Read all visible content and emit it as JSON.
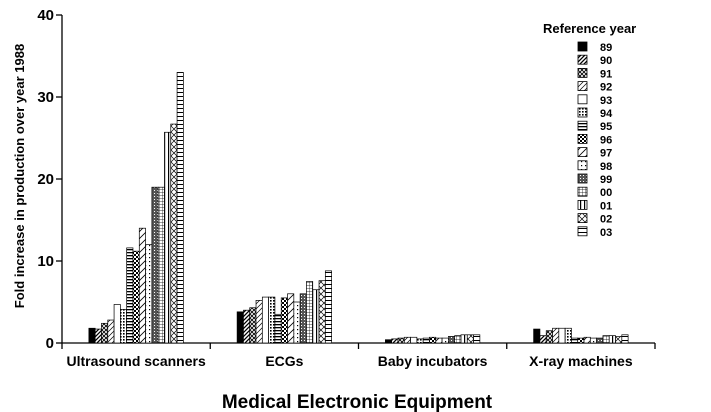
{
  "chart_data": {
    "type": "bar",
    "xlabel": "Medical Electronic Equipment",
    "ylabel": "Fold increase in production over year 1988",
    "ylim": [
      0,
      40
    ],
    "yticks": [
      0,
      10,
      20,
      30,
      40
    ],
    "grid": false,
    "legend": {
      "title": "Reference year",
      "placement": "top-right"
    },
    "categories": [
      "Ultrasound scanners",
      "ECGs",
      "Baby incubators",
      "X-ray machines"
    ],
    "series": [
      {
        "name": "89",
        "values": [
          1.8,
          3.8,
          0.4,
          1.7
        ]
      },
      {
        "name": "90",
        "values": [
          1.7,
          4.0,
          0.5,
          0.9
        ]
      },
      {
        "name": "91",
        "values": [
          2.4,
          4.3,
          0.6,
          1.5
        ]
      },
      {
        "name": "92",
        "values": [
          2.8,
          5.2,
          0.7,
          1.8
        ]
      },
      {
        "name": "93",
        "values": [
          4.7,
          5.6,
          0.7,
          1.8
        ]
      },
      {
        "name": "94",
        "values": [
          4.1,
          5.6,
          0.5,
          1.8
        ]
      },
      {
        "name": "95",
        "values": [
          11.6,
          3.5,
          0.6,
          0.6
        ]
      },
      {
        "name": "96",
        "values": [
          11.2,
          5.5,
          0.7,
          0.6
        ]
      },
      {
        "name": "97",
        "values": [
          14.0,
          6.0,
          0.6,
          0.7
        ]
      },
      {
        "name": "98",
        "values": [
          12.0,
          5.0,
          0.6,
          0.6
        ]
      },
      {
        "name": "99",
        "values": [
          19.0,
          6.0,
          0.8,
          0.6
        ]
      },
      {
        "name": "00",
        "values": [
          19.0,
          7.5,
          0.9,
          0.9
        ]
      },
      {
        "name": "01",
        "values": [
          25.7,
          6.5,
          1.0,
          0.9
        ]
      },
      {
        "name": "02",
        "values": [
          26.7,
          7.6,
          1.0,
          0.8
        ]
      },
      {
        "name": "03",
        "values": [
          33.0,
          8.8,
          1.0,
          1.0
        ]
      }
    ]
  }
}
